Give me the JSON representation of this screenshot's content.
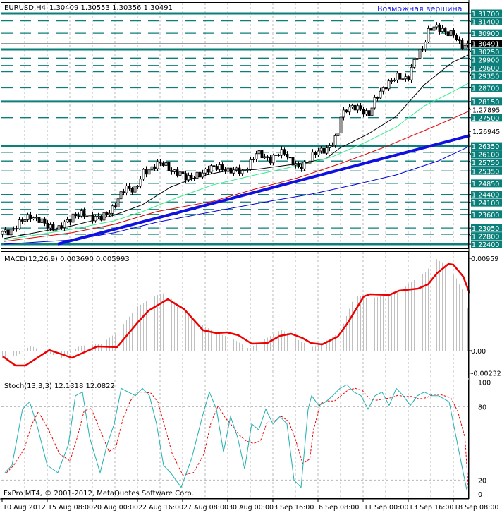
{
  "header": {
    "symbol": "EURUSD,H4",
    "ohlc": "1.30409 1.30553 1.30356 1.30491",
    "annotation": "Возможная вершина",
    "copyright": "FxPro MT4, © 2001-2012, MetaQuotes Software Corp."
  },
  "colors": {
    "teal": "#0b7f7a",
    "bull": "#ffffff",
    "bear": "#000000",
    "annotation": "#2222ee",
    "ma1": "#000000",
    "ma2": "#33ee88",
    "ma3": "#e00000",
    "ma4": "#0000dd",
    "trend": "#1010e0",
    "signal": "#ee0000",
    "histogram": "#c0c0c0",
    "stoch_main": "#20b0b0",
    "stoch_signal": "#ee0000"
  },
  "chart_data": [
    {
      "type": "candlestick",
      "title": "EURUSD,H4",
      "ylim": [
        1.2224,
        1.3219
      ],
      "current_price": "1.30491",
      "close_path": {
        "bar": [
          1.25,
          5,
          10,
          15,
          20,
          25,
          30,
          35,
          40,
          43.75,
          47.5,
          50,
          53.75,
          57.5,
          61.25,
          65,
          70,
          73.75,
          77.5,
          81.25,
          85,
          90,
          95,
          100,
          105,
          110,
          115,
          118.75,
          120,
          122.5,
          126.25,
          130,
          132.5,
          136.25,
          140,
          143.75,
          146.25,
          148.75,
          151.25,
          153.75,
          156.25,
          160,
          162.5,
          165
        ],
        "price": [
          1.2285,
          1.2314,
          1.2357,
          1.232,
          1.23,
          1.2357,
          1.2357,
          1.2342,
          1.2399,
          1.247,
          1.2462,
          1.2527,
          1.2556,
          1.2564,
          1.2527,
          1.2513,
          1.2513,
          1.2556,
          1.2541,
          1.2541,
          1.2527,
          1.2604,
          1.2584,
          1.2613,
          1.2541,
          1.2598,
          1.2627,
          1.2669,
          1.2755,
          1.2797,
          1.2783,
          1.2769,
          1.2826,
          1.2888,
          1.2911,
          1.2911,
          1.2982,
          1.3025,
          1.311,
          1.311,
          1.3105,
          1.3082,
          1.3039,
          1.3049
        ]
      },
      "moving_averages": [
        {
          "name": "ma-black",
          "bar": [
            1,
            25,
            40,
            50,
            60,
            70,
            80,
            90,
            105,
            115,
            120,
            130,
            140,
            150,
            160,
            165.5
          ],
          "price": [
            1.2263,
            1.2314,
            1.2357,
            1.2399,
            1.247,
            1.2513,
            1.2536,
            1.2541,
            1.2564,
            1.2584,
            1.2627,
            1.2684,
            1.2755,
            1.2883,
            1.2974,
            1.3002
          ]
        },
        {
          "name": "ma-green",
          "bar": [
            1,
            25,
            40,
            50,
            62.5,
            75,
            90,
            105,
            117.5,
            130,
            140,
            150,
            160,
            165.5
          ],
          "price": [
            1.2257,
            1.23,
            1.2334,
            1.2371,
            1.2428,
            1.2479,
            1.2519,
            1.2556,
            1.2593,
            1.2655,
            1.2712,
            1.2797,
            1.2854,
            1.2888
          ]
        },
        {
          "name": "ma-red",
          "bar": [
            1,
            25,
            40,
            55,
            75,
            90,
            105,
            120,
            135,
            150,
            160,
            165.5
          ],
          "price": [
            1.2251,
            1.2286,
            1.232,
            1.2371,
            1.2413,
            1.2462,
            1.2507,
            1.2564,
            1.2627,
            1.2698,
            1.2746,
            1.2775
          ]
        },
        {
          "name": "ma-blue",
          "bar": [
            1,
            25,
            40,
            55,
            75,
            95,
            110,
            125,
            140,
            155,
            165.5
          ],
          "price": [
            1.224,
            1.2257,
            1.2286,
            1.2328,
            1.2371,
            1.2413,
            1.2442,
            1.2479,
            1.2519,
            1.2576,
            1.2632
          ]
        }
      ],
      "trendline": {
        "bar": [
          20,
          166.25
        ],
        "price": [
          1.224,
          1.2678
        ]
      },
      "levels_solid": [
        1.317,
        1.3025,
        1.2815,
        1.2635,
        1.224
      ],
      "levels_dashed": [
        1.314,
        1.309,
        1.299,
        1.296,
        1.2935,
        1.287,
        1.275,
        1.261,
        1.2575,
        1.2535,
        1.2485,
        1.244,
        1.241,
        1.238,
        1.236,
        1.2305,
        1.228
      ],
      "level_labels": [
        "1.31700",
        "1.31400",
        "1.30900",
        "1.30250",
        "1.29900",
        "1.29600",
        "1.29350",
        "1.28700",
        "1.28150",
        "1.27500",
        "1.26350",
        "1.26100",
        "1.25750",
        "1.25350",
        "1.24850",
        "1.24400",
        "1.24100",
        "1.23600",
        "1.23050",
        "1.22800",
        "1.22400"
      ],
      "scale_labels": [
        "1.27895",
        "1.26945"
      ]
    },
    {
      "type": "bar+line",
      "title": "MACD(12,26,9) 0.003690 0.005993",
      "ylim": [
        -0.00232,
        0.00959
      ],
      "tick_labels": [
        "0.00959",
        "0.00",
        "-0.00232"
      ],
      "histogram": {
        "bar": [
          0.5,
          5,
          10,
          15,
          21,
          27.5,
          35,
          41,
          47.5,
          54,
          57.5,
          62.5,
          69,
          75,
          82.5,
          87.5,
          92.5,
          99,
          105,
          110,
          116,
          120,
          122.5,
          125,
          130,
          140,
          150,
          154,
          157.5,
          161,
          164,
          165.5
        ],
        "value": [
          -0.0008,
          -0.0005,
          0.0005,
          -0.0001,
          -0.0008,
          0.0005,
          0.0007,
          0.002,
          0.0045,
          0.0057,
          0.006,
          0.0047,
          0.003,
          0.002,
          0.0011,
          0.0002,
          0.0011,
          0.0022,
          0.0011,
          0.0004,
          0.0012,
          0.002,
          0.004,
          0.0058,
          0.0054,
          0.006,
          0.0082,
          0.0095,
          0.0088,
          0.0075,
          0.0058,
          0.00369
        ]
      },
      "signal": {
        "bar": [
          0.5,
          5,
          8.5,
          17,
          25,
          34,
          41,
          48.75,
          52.25,
          59,
          64.75,
          71.5,
          76.25,
          80,
          84,
          88.75,
          94.25,
          98.75,
          102.75,
          106.75,
          109.75,
          113.75,
          119.25,
          122.75,
          128.5,
          130.75,
          137.5,
          141,
          147.75,
          151.25,
          154.5,
          158.5,
          160.25,
          163.75,
          166
        ],
        "value": [
          -0.00059,
          -0.00154,
          -0.00154,
          7e-05,
          -0.00073,
          0.00044,
          0.00037,
          0.00307,
          0.00417,
          0.00534,
          0.00432,
          0.00212,
          0.00183,
          0.0019,
          0.00161,
          0.00073,
          0.0008,
          0.00154,
          0.00176,
          0.00132,
          0.0008,
          0.00066,
          0.00146,
          0.00286,
          0.00564,
          0.00586,
          0.00578,
          0.00622,
          0.00644,
          0.00688,
          0.00805,
          0.009,
          0.00893,
          0.00769,
          0.00599
        ]
      }
    },
    {
      "type": "line",
      "title": "Stoch(13,3,3) 12.1318 12.0822",
      "ylim": [
        0,
        100
      ],
      "tick_labels": [
        "100",
        "80",
        "20",
        "0"
      ],
      "main": {
        "bar": [
          1.25,
          3.75,
          7.5,
          10,
          12.5,
          16.25,
          20,
          23.75,
          26.25,
          28.75,
          31.25,
          35,
          37.5,
          40,
          42.5,
          45,
          47.5,
          50,
          52.5,
          55,
          57.5,
          60,
          63.75,
          67.5,
          71.25,
          73.75,
          76.25,
          78.75,
          81.25,
          83.75,
          86.25,
          88.75,
          91.25,
          93.75,
          96.25,
          98.75,
          101.25,
          103.75,
          106.25,
          108.75,
          110,
          112.5,
          115,
          117.5,
          120,
          122.5,
          125,
          127.5,
          130,
          132.5,
          135,
          137.5,
          140,
          142.5,
          145,
          147.5,
          150,
          152.5,
          155,
          158.75,
          161.25,
          163.75,
          165
        ],
        "value": [
          26,
          32,
          78,
          84,
          66,
          32,
          26,
          49,
          89,
          92,
          55,
          26,
          49,
          66,
          95,
          92,
          89,
          95,
          89,
          66,
          32,
          26,
          14,
          38,
          72,
          92,
          78,
          43,
          72,
          55,
          29,
          66,
          61,
          78,
          66,
          72,
          66,
          20,
          14,
          78,
          89,
          81,
          84,
          89,
          95,
          98,
          92,
          89,
          78,
          89,
          92,
          81,
          95,
          89,
          81,
          89,
          92,
          89,
          89,
          84,
          55,
          26,
          12.13
        ]
      }
    }
  ],
  "time_axis": {
    "labels": [
      "10 Aug 2012",
      "15 Aug 08:00",
      "20 Aug 00:00",
      "22 Aug 16:00",
      "27 Aug 08:00",
      "30 Aug 00:00",
      "3 Sep 16:00",
      "6 Sep 08:00",
      "11 Sep 00:00",
      "13 Sep 16:00",
      "18 Sep 08:00"
    ]
  }
}
